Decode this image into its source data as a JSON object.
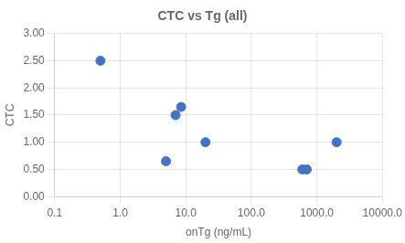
{
  "chart_data": {
    "type": "scatter",
    "title": "CTC vs Tg (all)",
    "xlabel": "onTg (ng/mL)",
    "ylabel": "CTC",
    "x": [
      0.5,
      5.0,
      7.0,
      8.5,
      20.0,
      600.0,
      700.0,
      2000.0
    ],
    "values": [
      2.5,
      0.65,
      1.5,
      1.65,
      1.0,
      0.5,
      0.5,
      1.0
    ],
    "color": "#4472C4",
    "log": "x",
    "xlim": [
      0.1,
      10000
    ],
    "ylim": [
      0,
      3
    ],
    "xticks": [
      0.1,
      {
        "value": 1,
        "label": "1.0"
      },
      {
        "value": 10,
        "label": "10.0"
      },
      {
        "value": 100,
        "label": "100.0"
      },
      {
        "value": 1000,
        "label": "1000.0"
      },
      {
        "value": 10000,
        "label": "10000.0"
      }
    ],
    "yticks": [
      {
        "value": 0,
        "label": "0.00"
      },
      {
        "value": 0.5,
        "label": "0.50"
      },
      {
        "value": 1,
        "label": "1.00"
      },
      {
        "value": 1.5,
        "label": "1.50"
      },
      {
        "value": 2,
        "label": "2.00"
      },
      {
        "value": 2.5,
        "label": "2.50"
      },
      {
        "value": 3,
        "label": "3.00"
      }
    ],
    "grid": true
  }
}
